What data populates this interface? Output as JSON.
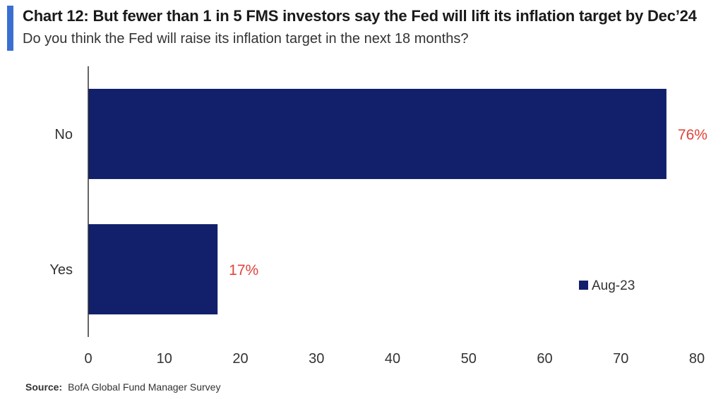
{
  "header": {
    "title": "Chart 12: But fewer than 1 in 5 FMS investors say the Fed will lift its inflation target by Dec’24",
    "subtitle": "Do you think the Fed will raise its inflation target in the next 18 months?"
  },
  "footer": {
    "source_label": "Source:",
    "source_text": "BofA Global Fund Manager Survey"
  },
  "colors": {
    "accent": "#3a6fd1",
    "bar": "#12206b",
    "data_label": "#e0433a",
    "axis": "#333333",
    "text": "#333333"
  },
  "chart_data": {
    "type": "bar",
    "orientation": "horizontal",
    "categories": [
      "No",
      "Yes"
    ],
    "series": [
      {
        "name": "Aug-23",
        "values": [
          76,
          17
        ]
      }
    ],
    "data_labels": [
      "76%",
      "17%"
    ],
    "xlim": [
      0,
      80
    ],
    "x_ticks": [
      0,
      10,
      20,
      30,
      40,
      50,
      60,
      70,
      80
    ],
    "grid": false,
    "legend_position": "bottom-right"
  }
}
